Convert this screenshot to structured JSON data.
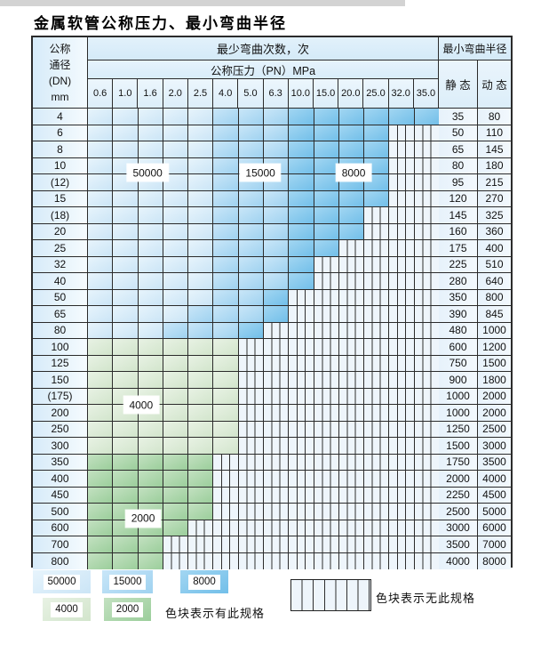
{
  "title": "金属软管公称压力、最小弯曲半径",
  "table": {
    "corner_header_lines": [
      "公称",
      "通径",
      "(DN)",
      "mm"
    ],
    "bend_cycles_header": "最少弯曲次数，次",
    "pressure_header": "公称压力（PN）MPa",
    "pressure_columns": [
      "0.6",
      "1.0",
      "1.6",
      "2.0",
      "2.5",
      "4.0",
      "5.0",
      "6.3",
      "10.0",
      "15.0",
      "20.0",
      "25.0",
      "32.0",
      "35.0"
    ],
    "radius_header": "最小弯曲半径",
    "static_header": "静 态",
    "dynamic_header": "动 态",
    "rows": [
      {
        "dn": "4",
        "bands": [
          [
            "b1",
            5
          ],
          [
            "b2",
            3
          ],
          [
            "b3",
            6
          ]
        ],
        "static": "35",
        "dynamic": "80"
      },
      {
        "dn": "6",
        "bands": [
          [
            "b1",
            5
          ],
          [
            "b2",
            3
          ],
          [
            "b3",
            4
          ],
          [
            "h",
            2
          ]
        ],
        "static": "50",
        "dynamic": "110"
      },
      {
        "dn": "8",
        "bands": [
          [
            "b1",
            5
          ],
          [
            "b2",
            3
          ],
          [
            "b3",
            4
          ],
          [
            "h",
            2
          ]
        ],
        "static": "65",
        "dynamic": "145"
      },
      {
        "dn": "10",
        "bands": [
          [
            "b1",
            5
          ],
          [
            "b2",
            3
          ],
          [
            "b3",
            4
          ],
          [
            "h",
            2
          ]
        ],
        "static": "80",
        "dynamic": "180"
      },
      {
        "dn": "(12)",
        "bands": [
          [
            "b1",
            5
          ],
          [
            "b2",
            3
          ],
          [
            "b3",
            4
          ],
          [
            "h",
            2
          ]
        ],
        "static": "95",
        "dynamic": "215"
      },
      {
        "dn": "15",
        "bands": [
          [
            "b1",
            5
          ],
          [
            "b2",
            3
          ],
          [
            "b3",
            4
          ],
          [
            "h",
            2
          ]
        ],
        "static": "120",
        "dynamic": "270"
      },
      {
        "dn": "(18)",
        "bands": [
          [
            "b1",
            5
          ],
          [
            "b2",
            3
          ],
          [
            "b3",
            3
          ],
          [
            "h",
            3
          ]
        ],
        "static": "145",
        "dynamic": "325"
      },
      {
        "dn": "20",
        "bands": [
          [
            "b1",
            5
          ],
          [
            "b2",
            3
          ],
          [
            "b3",
            3
          ],
          [
            "h",
            3
          ]
        ],
        "static": "160",
        "dynamic": "360"
      },
      {
        "dn": "25",
        "bands": [
          [
            "b1",
            5
          ],
          [
            "b2",
            3
          ],
          [
            "b3",
            2
          ],
          [
            "h",
            4
          ]
        ],
        "static": "175",
        "dynamic": "400"
      },
      {
        "dn": "32",
        "bands": [
          [
            "b1",
            5
          ],
          [
            "b2",
            3
          ],
          [
            "b3",
            1
          ],
          [
            "h",
            5
          ]
        ],
        "static": "225",
        "dynamic": "510"
      },
      {
        "dn": "40",
        "bands": [
          [
            "b1",
            5
          ],
          [
            "b2",
            3
          ],
          [
            "b3",
            1
          ],
          [
            "h",
            5
          ]
        ],
        "static": "280",
        "dynamic": "640"
      },
      {
        "dn": "50",
        "bands": [
          [
            "b1",
            5
          ],
          [
            "b2",
            2
          ],
          [
            "b3",
            1
          ],
          [
            "h",
            6
          ]
        ],
        "static": "350",
        "dynamic": "800"
      },
      {
        "dn": "65",
        "bands": [
          [
            "b1",
            4
          ],
          [
            "b2",
            3
          ],
          [
            "b3",
            1
          ],
          [
            "h",
            6
          ]
        ],
        "static": "390",
        "dynamic": "845"
      },
      {
        "dn": "80",
        "bands": [
          [
            "b1",
            3
          ],
          [
            "b2",
            3
          ],
          [
            "b3",
            1
          ],
          [
            "h",
            7
          ]
        ],
        "static": "480",
        "dynamic": "1000"
      },
      {
        "dn": "100",
        "bands": [
          [
            "g1",
            6
          ],
          [
            "h",
            8
          ]
        ],
        "static": "600",
        "dynamic": "1200"
      },
      {
        "dn": "125",
        "bands": [
          [
            "g1",
            6
          ],
          [
            "h",
            8
          ]
        ],
        "static": "750",
        "dynamic": "1500"
      },
      {
        "dn": "150",
        "bands": [
          [
            "g1",
            6
          ],
          [
            "h",
            8
          ]
        ],
        "static": "900",
        "dynamic": "1800"
      },
      {
        "dn": "(175)",
        "bands": [
          [
            "g1",
            6
          ],
          [
            "h",
            8
          ]
        ],
        "static": "1000",
        "dynamic": "2000"
      },
      {
        "dn": "200",
        "bands": [
          [
            "g1",
            6
          ],
          [
            "h",
            8
          ]
        ],
        "static": "1000",
        "dynamic": "2000"
      },
      {
        "dn": "250",
        "bands": [
          [
            "g1",
            6
          ],
          [
            "h",
            8
          ]
        ],
        "static": "1250",
        "dynamic": "2500"
      },
      {
        "dn": "300",
        "bands": [
          [
            "g1",
            6
          ],
          [
            "h",
            8
          ]
        ],
        "static": "1500",
        "dynamic": "3000"
      },
      {
        "dn": "350",
        "bands": [
          [
            "g2",
            5
          ],
          [
            "h",
            9
          ]
        ],
        "static": "1750",
        "dynamic": "3500"
      },
      {
        "dn": "400",
        "bands": [
          [
            "g2",
            5
          ],
          [
            "h",
            9
          ]
        ],
        "static": "2000",
        "dynamic": "4000"
      },
      {
        "dn": "450",
        "bands": [
          [
            "g2",
            5
          ],
          [
            "h",
            9
          ]
        ],
        "static": "2250",
        "dynamic": "4500"
      },
      {
        "dn": "500",
        "bands": [
          [
            "g2",
            5
          ],
          [
            "h",
            9
          ]
        ],
        "static": "2500",
        "dynamic": "5000"
      },
      {
        "dn": "600",
        "bands": [
          [
            "g2",
            4
          ],
          [
            "h",
            10
          ]
        ],
        "static": "3000",
        "dynamic": "6000"
      },
      {
        "dn": "700",
        "bands": [
          [
            "g2",
            3
          ],
          [
            "h",
            11
          ]
        ],
        "static": "3500",
        "dynamic": "7000"
      },
      {
        "dn": "800",
        "bands": [
          [
            "g2",
            3
          ],
          [
            "h",
            11
          ]
        ],
        "static": "4000",
        "dynamic": "8000"
      }
    ],
    "region_labels": [
      {
        "text": "50000",
        "col": 2.38,
        "row": 3.9
      },
      {
        "text": "15000",
        "col": 6.88,
        "row": 3.9
      },
      {
        "text": "8000",
        "col": 10.6,
        "row": 3.9
      },
      {
        "text": "4000",
        "col": 2.12,
        "row": 18.0
      },
      {
        "text": "2000",
        "col": 2.2,
        "row": 24.9
      }
    ]
  },
  "legend": {
    "swatches": [
      {
        "label": "50000",
        "key": "b1"
      },
      {
        "label": "15000",
        "key": "b2"
      },
      {
        "label": "8000",
        "key": "b3"
      },
      {
        "label": "4000",
        "key": "g1"
      },
      {
        "label": "2000",
        "key": "g2"
      }
    ],
    "has_spec_text": "色块表示有此规格",
    "no_spec_text": "色块表示无此规格"
  },
  "colors": {
    "b1": {
      "base": "#cbe5f6",
      "light": "#e7f4fc"
    },
    "b2": {
      "base": "#9fd2f0",
      "light": "#c9e6f8"
    },
    "b3": {
      "base": "#72bfe9",
      "light": "#a2d6f2"
    },
    "g1": {
      "base": "#d2e5cc",
      "light": "#e8f2e4"
    },
    "g2": {
      "base": "#9bce9b",
      "light": "#c3e1c1"
    },
    "hatch_bg": "#eef5fb",
    "hatch_line": "#2e2e2e",
    "grid_line": "#2b2b2b"
  }
}
